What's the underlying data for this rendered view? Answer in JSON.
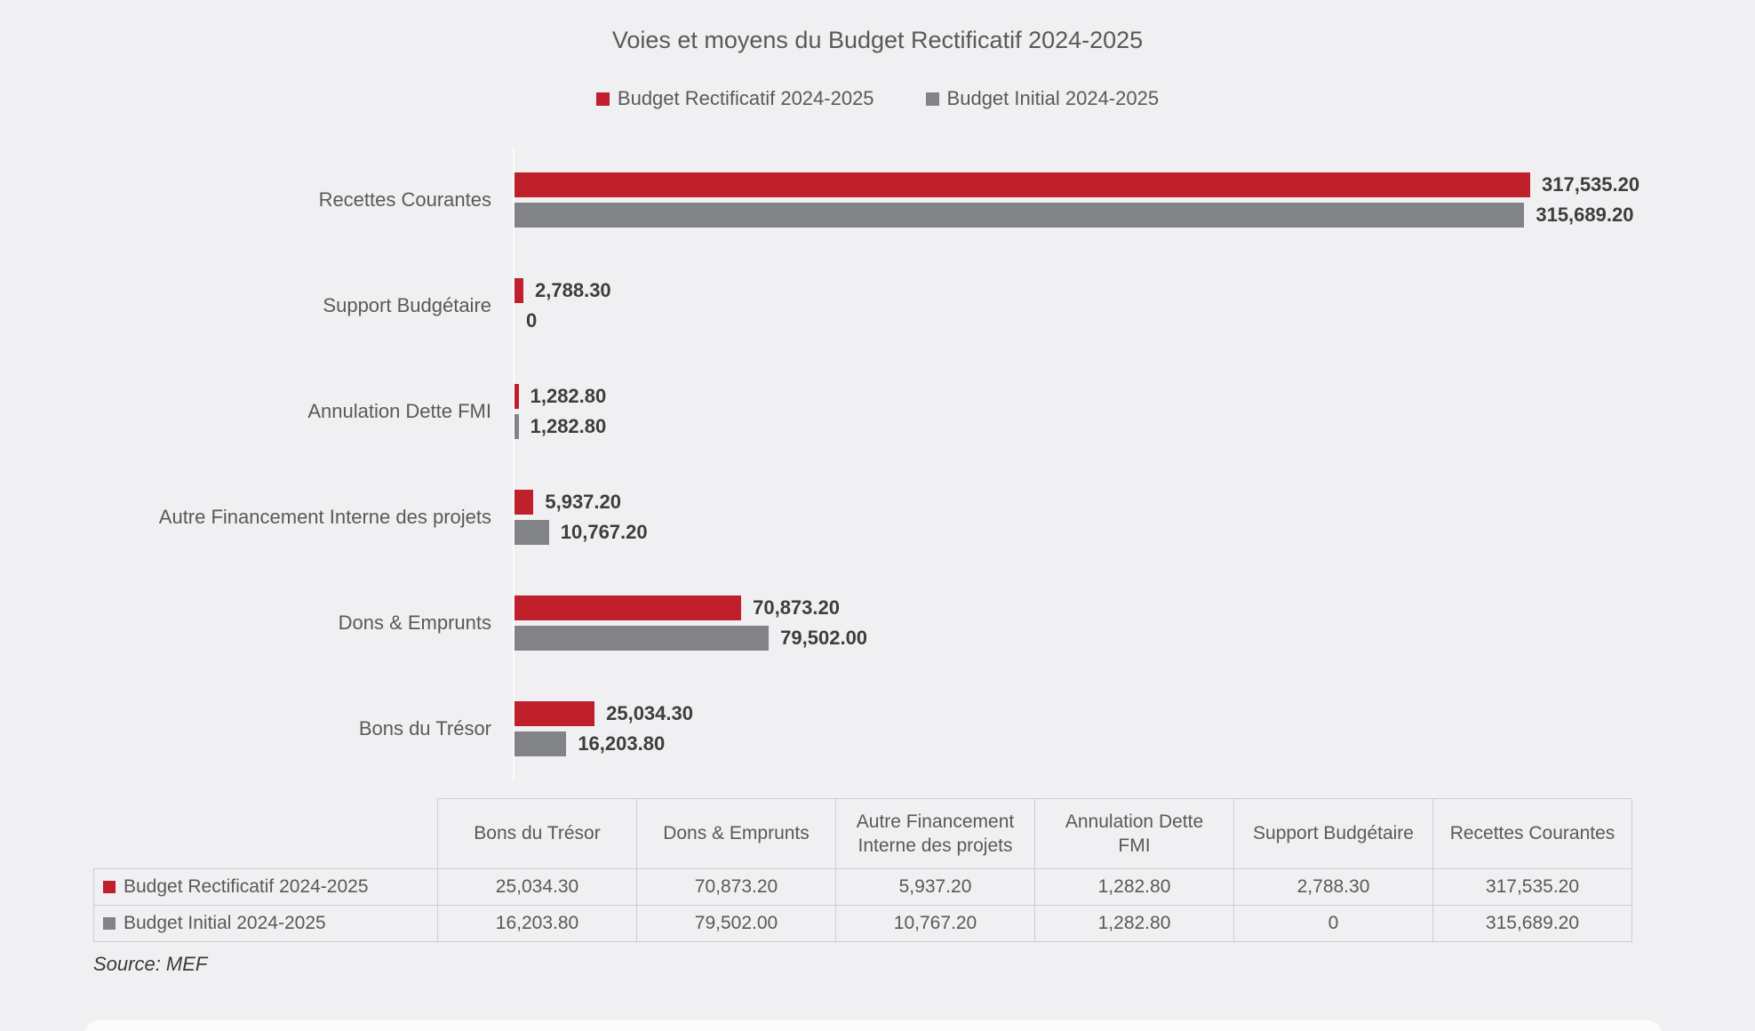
{
  "chart_data": {
    "type": "bar",
    "orientation": "horizontal",
    "title": "Voies et moyens du Budget Rectificatif 2024-2025",
    "categories": [
      "Recettes Courantes",
      "Support Budgétaire",
      "Annulation Dette FMI",
      "Autre Financement Interne des projets",
      "Dons & Emprunts",
      "Bons du Trésor"
    ],
    "series": [
      {
        "name": "Budget Rectificatif 2024-2025",
        "color": "#C0202C",
        "values": [
          317535.2,
          2788.3,
          1282.8,
          5937.2,
          70873.2,
          25034.3
        ],
        "labels": [
          "317,535.20",
          "2,788.30",
          "1,282.80",
          "5,937.20",
          "70,873.20",
          "25,034.30"
        ]
      },
      {
        "name": "Budget Initial 2024-2025",
        "color": "#818387",
        "values": [
          315689.2,
          0,
          1282.8,
          10767.2,
          79502.0,
          16203.8
        ],
        "labels": [
          "315,689.20",
          "0",
          "1,282.80",
          "10,767.20",
          "79,502.00",
          "16,203.80"
        ]
      }
    ],
    "value_labels_shown": true,
    "x_axis_visible": false,
    "grid": false,
    "legend_position": "top",
    "xlim": [
      0,
      317535.2
    ]
  },
  "table": {
    "columns": [
      "Bons du Trésor",
      "Dons & Emprunts",
      "Autre Financement\nInterne des projets",
      "Annulation Dette\nFMI",
      "Support Budgétaire",
      "Recettes Courantes"
    ],
    "rows": [
      {
        "label": "Budget Rectificatif 2024-2025",
        "swatch": "#C0202C",
        "values": [
          "25,034.30",
          "70,873.20",
          "5,937.20",
          "1,282.80",
          "2,788.30",
          "317,535.20"
        ]
      },
      {
        "label": "Budget Initial 2024-2025",
        "swatch": "#818387",
        "values": [
          "16,203.80",
          "79,502.00",
          "10,767.20",
          "1,282.80",
          "0",
          "315,689.20"
        ]
      }
    ]
  },
  "source_note": "Source: MEF",
  "colors": {
    "background": "#F0F0F2",
    "series_red": "#C0202C",
    "series_gray": "#818387",
    "text": "#595959",
    "value_text": "#3D3D3D",
    "table_border": "#CDCED0",
    "axis_line": "#FBFBFC"
  }
}
